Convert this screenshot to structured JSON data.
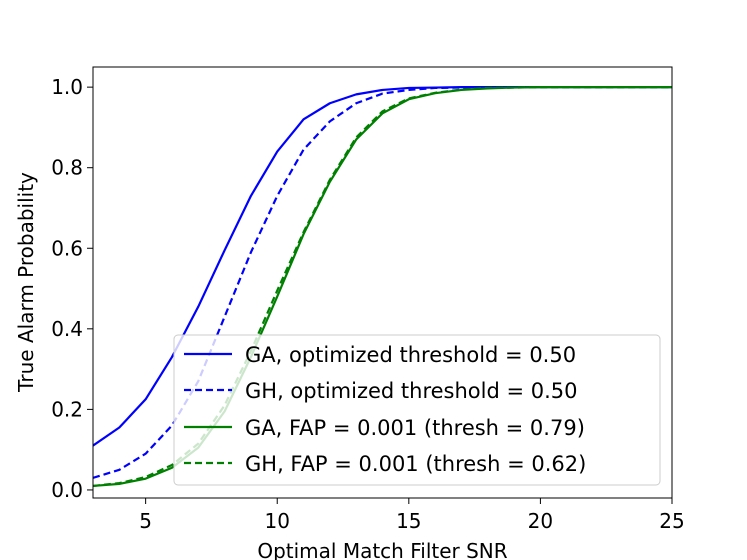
{
  "chart_data": {
    "type": "line",
    "title": "",
    "xlabel": "Optimal Match Filter SNR",
    "ylabel": "True Alarm Probability",
    "xlim": [
      3,
      25
    ],
    "ylim": [
      -0.02,
      1.05
    ],
    "xticks": [
      5,
      10,
      15,
      20,
      25
    ],
    "yticks": [
      0.0,
      0.2,
      0.4,
      0.6,
      0.8,
      1.0
    ],
    "xtick_labels": [
      "5",
      "10",
      "15",
      "20",
      "25"
    ],
    "ytick_labels": [
      "0.0",
      "0.2",
      "0.4",
      "0.6",
      "0.8",
      "1.0"
    ],
    "grid": false,
    "legend_position": "lower-right",
    "x": [
      3,
      4,
      5,
      6,
      7,
      8,
      9,
      10,
      11,
      12,
      13,
      14,
      15,
      16,
      17,
      18,
      19,
      20,
      21,
      22,
      23,
      24,
      25
    ],
    "series": [
      {
        "name": "GA, optimized threshold = 0.50",
        "color": "#0000ff",
        "dash": "solid",
        "values": [
          0.11,
          0.155,
          0.225,
          0.33,
          0.455,
          0.595,
          0.73,
          0.84,
          0.92,
          0.96,
          0.982,
          0.993,
          0.998,
          0.999,
          1.0,
          1.0,
          1.0,
          1.0,
          1.0,
          1.0,
          1.0,
          1.0,
          1.0
        ]
      },
      {
        "name": "GH, optimized threshold = 0.50",
        "color": "#0000ff",
        "dash": "dashed",
        "values": [
          0.03,
          0.05,
          0.09,
          0.16,
          0.27,
          0.43,
          0.59,
          0.73,
          0.845,
          0.915,
          0.96,
          0.984,
          0.993,
          0.998,
          0.999,
          1.0,
          1.0,
          1.0,
          1.0,
          1.0,
          1.0,
          1.0,
          1.0
        ]
      },
      {
        "name": "GA, FAP = 0.001 (thresh = 0.79)",
        "color": "#008000",
        "dash": "solid",
        "values": [
          0.01,
          0.015,
          0.028,
          0.055,
          0.105,
          0.195,
          0.33,
          0.48,
          0.635,
          0.765,
          0.87,
          0.935,
          0.97,
          0.985,
          0.993,
          0.997,
          0.999,
          1.0,
          1.0,
          1.0,
          1.0,
          1.0,
          1.0
        ]
      },
      {
        "name": "GH, FAP = 0.001 (thresh = 0.62)",
        "color": "#008000",
        "dash": "dashed",
        "values": [
          0.01,
          0.017,
          0.032,
          0.062,
          0.115,
          0.21,
          0.345,
          0.495,
          0.64,
          0.77,
          0.875,
          0.94,
          0.972,
          0.986,
          0.994,
          0.998,
          0.999,
          1.0,
          1.0,
          1.0,
          1.0,
          1.0,
          1.0
        ]
      }
    ]
  }
}
